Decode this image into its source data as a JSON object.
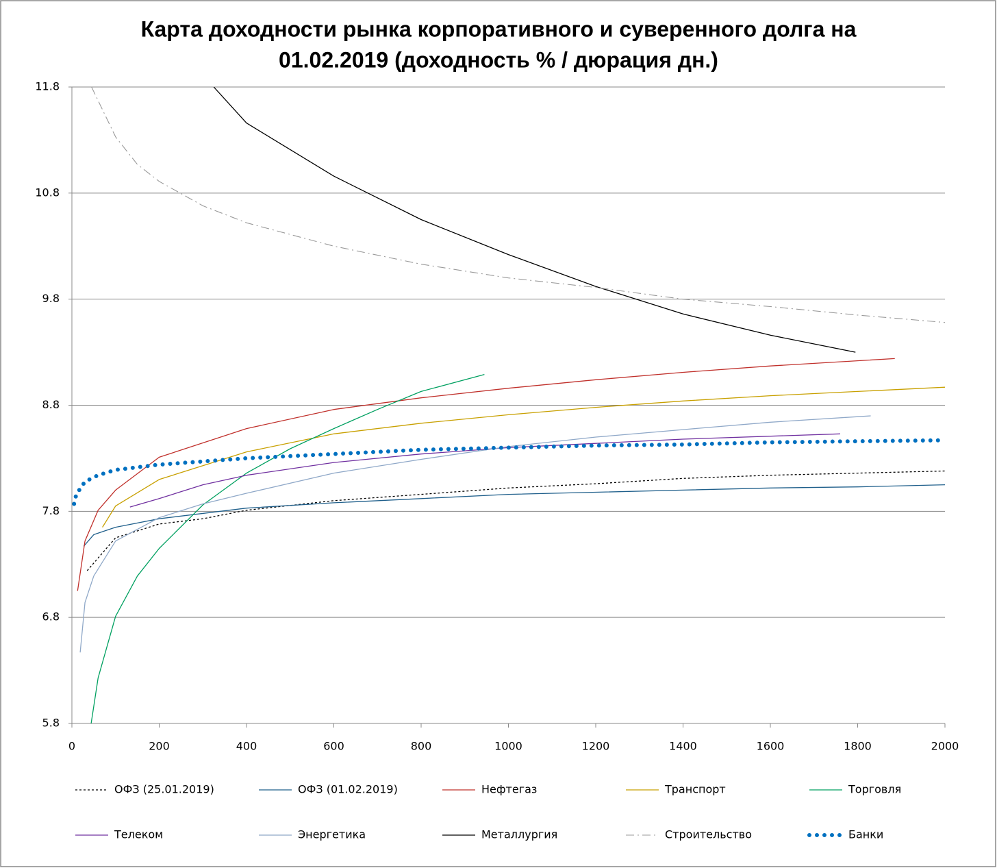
{
  "chart_data": {
    "type": "line",
    "title": [
      "Карта доходности рынка корпоративного и суверенного долга на",
      "01.02.2019 (доходность % / дюрация дн.)"
    ],
    "xlim": [
      0,
      2000
    ],
    "xticks": [
      0,
      200,
      400,
      600,
      800,
      1000,
      1200,
      1400,
      1600,
      1800,
      2000
    ],
    "ylim": [
      5.8,
      11.8
    ],
    "yticks": [
      5.8,
      6.8,
      7.8,
      8.8,
      9.8,
      10.8,
      11.8
    ],
    "grid": true,
    "legend": "bottom",
    "series": [
      {
        "name": "ОФЗ (25.01.2019)",
        "color": "#000000",
        "dash": "dotted",
        "x": [
          35,
          100,
          200,
          300,
          400,
          600,
          800,
          1000,
          1200,
          1400,
          1600,
          1800,
          2000
        ],
        "values": [
          7.24,
          7.55,
          7.68,
          7.73,
          7.81,
          7.9,
          7.96,
          8.02,
          8.06,
          8.11,
          8.14,
          8.16,
          8.18
        ]
      },
      {
        "name": "ОФЗ (01.02.2019)",
        "color": "#1f5f8b",
        "dash": "solid",
        "x": [
          27,
          50,
          100,
          200,
          400,
          600,
          800,
          1000,
          1200,
          1400,
          1600,
          1800,
          2000
        ],
        "values": [
          7.47,
          7.58,
          7.65,
          7.73,
          7.83,
          7.88,
          7.92,
          7.96,
          7.98,
          8.0,
          8.02,
          8.03,
          8.05
        ]
      },
      {
        "name": "Нефтегаз",
        "color": "#c0302b",
        "dash": "solid",
        "x": [
          13,
          30,
          60,
          100,
          200,
          400,
          600,
          800,
          1000,
          1200,
          1400,
          1600,
          1885
        ],
        "values": [
          7.05,
          7.52,
          7.81,
          8.0,
          8.31,
          8.58,
          8.76,
          8.87,
          8.96,
          9.04,
          9.11,
          9.17,
          9.24
        ]
      },
      {
        "name": "Транспорт",
        "color": "#c8a000",
        "dash": "solid",
        "x": [
          70,
          100,
          200,
          400,
          600,
          800,
          1000,
          1200,
          1400,
          1600,
          1800,
          2000
        ],
        "values": [
          7.65,
          7.85,
          8.1,
          8.36,
          8.53,
          8.63,
          8.71,
          8.78,
          8.84,
          8.89,
          8.93,
          8.97
        ]
      },
      {
        "name": "Торговля",
        "color": "#00a060",
        "dash": "solid",
        "x": [
          44,
          60,
          100,
          150,
          200,
          300,
          400,
          500,
          600,
          700,
          800,
          945
        ],
        "values": [
          5.8,
          6.23,
          6.81,
          7.19,
          7.45,
          7.86,
          8.16,
          8.39,
          8.58,
          8.76,
          8.93,
          9.09
        ]
      },
      {
        "name": "Телеком",
        "color": "#7030a0",
        "dash": "solid",
        "x": [
          133,
          200,
          300,
          400,
          600,
          800,
          1000,
          1200,
          1400,
          1760
        ],
        "values": [
          7.84,
          7.92,
          8.05,
          8.14,
          8.26,
          8.34,
          8.4,
          8.44,
          8.48,
          8.53
        ]
      },
      {
        "name": "Энергетика",
        "color": "#8fa8c8",
        "dash": "solid",
        "x": [
          19,
          30,
          50,
          100,
          200,
          300,
          400,
          600,
          800,
          1000,
          1200,
          1400,
          1600,
          1830
        ],
        "values": [
          6.47,
          6.94,
          7.19,
          7.52,
          7.74,
          7.87,
          7.97,
          8.16,
          8.29,
          8.41,
          8.5,
          8.57,
          8.64,
          8.7
        ]
      },
      {
        "name": "Металлургия",
        "color": "#000000",
        "dash": "solid",
        "x": [
          325,
          400,
          600,
          800,
          1000,
          1200,
          1400,
          1600,
          1795
        ],
        "values": [
          11.8,
          11.46,
          10.96,
          10.55,
          10.22,
          9.92,
          9.66,
          9.46,
          9.3
        ]
      },
      {
        "name": "Строительство",
        "color": "#999999",
        "dash": "dashdot",
        "x": [
          45,
          100,
          150,
          200,
          300,
          400,
          600,
          800,
          1000,
          1200,
          1400,
          1600,
          1800,
          2000
        ],
        "values": [
          11.8,
          11.33,
          11.07,
          10.91,
          10.68,
          10.52,
          10.3,
          10.13,
          10.0,
          9.91,
          9.8,
          9.73,
          9.65,
          9.58
        ]
      },
      {
        "name": "Банки",
        "color": "#0070c0",
        "dash": "dots",
        "x": [
          5,
          10,
          30,
          60,
          100,
          200,
          400,
          600,
          800,
          1000,
          1200,
          1400,
          1600,
          1800,
          2000
        ],
        "values": [
          7.87,
          7.96,
          8.08,
          8.14,
          8.19,
          8.24,
          8.3,
          8.34,
          8.38,
          8.4,
          8.42,
          8.43,
          8.45,
          8.46,
          8.47
        ]
      }
    ]
  }
}
